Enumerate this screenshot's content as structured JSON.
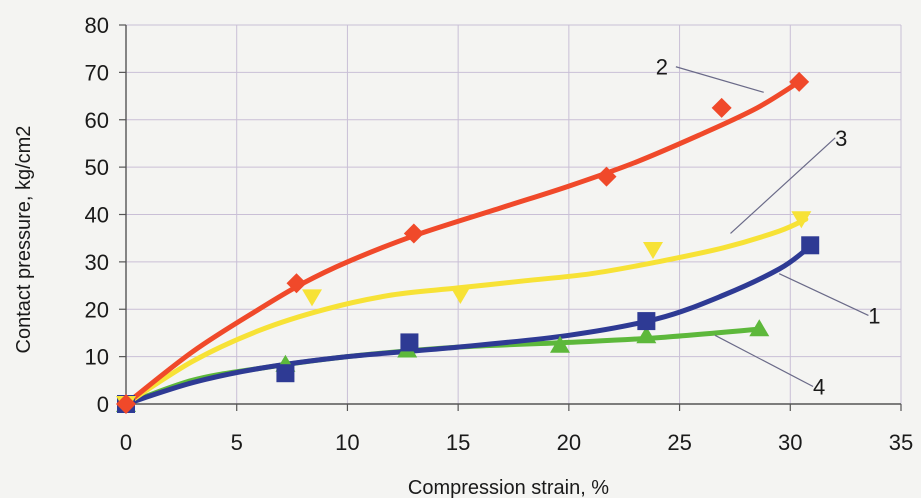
{
  "chart_data": {
    "type": "line",
    "xlabel": "Compression strain, %",
    "ylabel": "Contact pressure, kg/cm2",
    "xlim": [
      0,
      35
    ],
    "ylim": [
      0,
      80
    ],
    "x_ticks": [
      "0",
      "5",
      "10",
      "15",
      "20",
      "25",
      "30",
      "35"
    ],
    "y_ticks": [
      "0",
      "10",
      "20",
      "30",
      "40",
      "50",
      "60",
      "70",
      "80"
    ],
    "grid": true,
    "series": [
      {
        "name": "1",
        "color": "#2e3a94",
        "marker": "square",
        "points": [
          [
            0,
            0
          ],
          [
            7.2,
            6.5
          ],
          [
            12.8,
            13
          ],
          [
            23.5,
            17.5
          ],
          [
            30.9,
            33.5
          ]
        ],
        "curve": [
          [
            0,
            0
          ],
          [
            3,
            4.5
          ],
          [
            6,
            7.5
          ],
          [
            10,
            10
          ],
          [
            15,
            12
          ],
          [
            20,
            14.5
          ],
          [
            24,
            18
          ],
          [
            27,
            23
          ],
          [
            29.5,
            28.5
          ],
          [
            30.7,
            32.5
          ]
        ]
      },
      {
        "name": "2",
        "color": "#f0492a",
        "marker": "diamond",
        "points": [
          [
            0,
            0
          ],
          [
            7.7,
            25.5
          ],
          [
            13,
            36
          ],
          [
            21.7,
            48
          ],
          [
            26.9,
            62.5
          ],
          [
            30.4,
            68
          ]
        ],
        "curve": [
          [
            0,
            0
          ],
          [
            3,
            11
          ],
          [
            6,
            20
          ],
          [
            8,
            25.5
          ],
          [
            10,
            30
          ],
          [
            13,
            35.5
          ],
          [
            17,
            41.5
          ],
          [
            20,
            46
          ],
          [
            23,
            51
          ],
          [
            26,
            57
          ],
          [
            28.5,
            62.5
          ],
          [
            30.4,
            68
          ]
        ]
      },
      {
        "name": "3",
        "color": "#f7e236",
        "marker": "triangle-down",
        "points": [
          [
            0,
            0
          ],
          [
            8.4,
            22.5
          ],
          [
            15.1,
            23
          ],
          [
            23.8,
            32.5
          ],
          [
            30.5,
            39
          ]
        ],
        "curve": [
          [
            0,
            0
          ],
          [
            3,
            9
          ],
          [
            6,
            15.5
          ],
          [
            9,
            20
          ],
          [
            12,
            23
          ],
          [
            15,
            24.5
          ],
          [
            18,
            26
          ],
          [
            21,
            27.5
          ],
          [
            24,
            30
          ],
          [
            27,
            33
          ],
          [
            29.5,
            36.5
          ],
          [
            30.7,
            39
          ]
        ]
      },
      {
        "name": "4",
        "color": "#5db83b",
        "marker": "triangle-up",
        "points": [
          [
            0,
            0
          ],
          [
            7.2,
            8.5
          ],
          [
            12.7,
            11.5
          ],
          [
            19.6,
            12.5
          ],
          [
            23.5,
            14.5
          ],
          [
            28.6,
            16
          ]
        ],
        "curve": [
          [
            0,
            0
          ],
          [
            3,
            5
          ],
          [
            6,
            7.5
          ],
          [
            10,
            10
          ],
          [
            15,
            12
          ],
          [
            20,
            13
          ],
          [
            24,
            14
          ],
          [
            28.6,
            15.8
          ]
        ]
      }
    ],
    "callouts": [
      {
        "label": "2",
        "text_at": [
          24.2,
          69.5
        ],
        "line_to": [
          28.8,
          65.8
        ]
      },
      {
        "label": "3",
        "text_at": [
          32.3,
          54.5
        ],
        "line_to": [
          27.3,
          36
        ]
      },
      {
        "label": "1",
        "text_at": [
          33.8,
          17
        ],
        "line_to": [
          29.5,
          27.5
        ]
      },
      {
        "label": "4",
        "text_at": [
          31.3,
          2
        ],
        "line_to": [
          26.6,
          14.5
        ]
      }
    ]
  }
}
